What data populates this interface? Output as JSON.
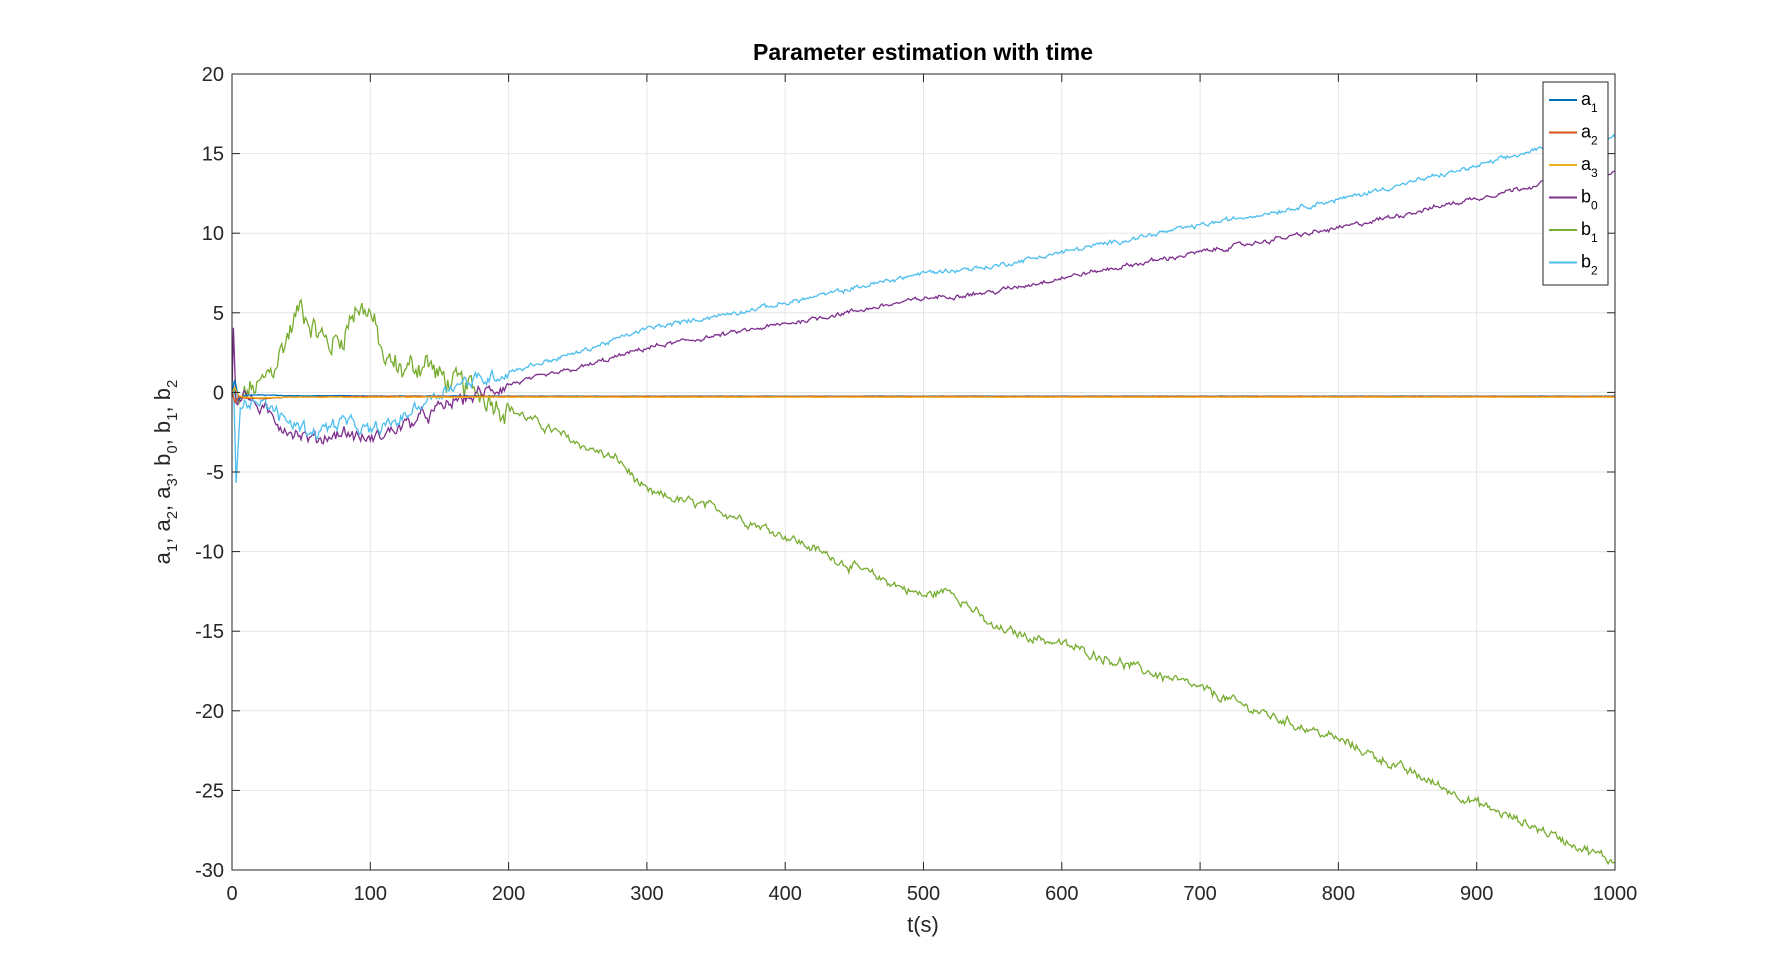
{
  "chart_data": {
    "type": "line",
    "title": "Parameter estimation with time",
    "xlabel": "t(s)",
    "ylabel": {
      "parts": [
        {
          "base": "a",
          "sub": "1"
        },
        {
          "base": "a",
          "sub": "2"
        },
        {
          "base": "a",
          "sub": "3"
        },
        {
          "base": "b",
          "sub": "0"
        },
        {
          "base": "b",
          "sub": "1"
        },
        {
          "base": "b",
          "sub": "2"
        }
      ],
      "separator": ", "
    },
    "xlim": [
      0,
      1000
    ],
    "ylim": [
      -30,
      20
    ],
    "xticks": [
      "0",
      "100",
      "200",
      "300",
      "400",
      "500",
      "600",
      "700",
      "800",
      "900",
      "1000"
    ],
    "yticks": [
      "20",
      "15",
      "10",
      "5",
      "0",
      "-5",
      "-10",
      "-15",
      "-20",
      "-25",
      "-30"
    ],
    "grid": true,
    "legend_location": "top-right",
    "series": [
      {
        "name": "a",
        "sub": "1",
        "color": "#0072BD",
        "x": [
          0,
          2,
          5,
          10,
          20,
          40,
          100,
          200,
          400,
          600,
          800,
          1000
        ],
        "y": [
          0.0,
          0.8,
          -0.4,
          -0.2,
          -0.15,
          -0.2,
          -0.22,
          -0.23,
          -0.23,
          -0.23,
          -0.23,
          -0.23
        ],
        "noise": 0.02
      },
      {
        "name": "a",
        "sub": "2",
        "color": "#D95319",
        "x": [
          0,
          2,
          5,
          10,
          20,
          40,
          100,
          200,
          400,
          600,
          800,
          1000
        ],
        "y": [
          0.0,
          -0.6,
          -0.3,
          -0.35,
          -0.4,
          -0.3,
          -0.25,
          -0.25,
          -0.25,
          -0.25,
          -0.25,
          -0.25
        ],
        "noise": 0.02
      },
      {
        "name": "a",
        "sub": "3",
        "color": "#EDB120",
        "x": [
          0,
          2,
          5,
          10,
          20,
          40,
          100,
          200,
          400,
          600,
          800,
          1000
        ],
        "y": [
          0.0,
          0.3,
          -0.2,
          -0.3,
          -0.35,
          -0.3,
          -0.3,
          -0.3,
          -0.3,
          -0.3,
          -0.3,
          -0.3
        ],
        "noise": 0.02
      },
      {
        "name": "b",
        "sub": "0",
        "color": "#7E2F8E",
        "x": [
          0,
          1,
          3,
          8,
          20,
          40,
          60,
          80,
          100,
          120,
          140,
          160,
          180,
          200,
          250,
          300,
          400,
          500,
          550,
          600,
          700,
          800,
          900,
          950,
          1000
        ],
        "y": [
          0,
          4.0,
          -0.5,
          0.0,
          -1.0,
          -2.3,
          -3.0,
          -2.5,
          -3.0,
          -2.2,
          -1.5,
          -0.6,
          -0.1,
          0.5,
          1.5,
          2.8,
          4.3,
          5.9,
          6.3,
          7.2,
          8.8,
          10.3,
          12.2,
          13.2,
          13.8
        ],
        "noise": 0.45
      },
      {
        "name": "b",
        "sub": "1",
        "color": "#77AC30",
        "x": [
          0,
          5,
          10,
          20,
          30,
          40,
          50,
          60,
          70,
          80,
          90,
          100,
          110,
          120,
          130,
          140,
          150,
          160,
          170,
          180,
          200,
          250,
          280,
          300,
          350,
          400,
          450,
          500,
          520,
          550,
          600,
          650,
          700,
          750,
          800,
          850,
          900,
          950,
          1000
        ],
        "y": [
          0,
          -1.0,
          0.0,
          0.3,
          1.5,
          3.5,
          5.5,
          4.0,
          3.0,
          3.5,
          5.5,
          5.0,
          2.0,
          1.5,
          1.5,
          2.0,
          1.0,
          0.5,
          0.3,
          0.0,
          -1.0,
          -3.2,
          -4.3,
          -6.3,
          -7.3,
          -9.0,
          -11.0,
          -12.8,
          -12.4,
          -14.8,
          -15.8,
          -17.2,
          -18.6,
          -20.3,
          -21.8,
          -23.8,
          -25.8,
          -27.6,
          -29.5
        ],
        "noise": 0.9
      },
      {
        "name": "b",
        "sub": "2",
        "color": "#4DBEEE",
        "x": [
          0,
          1,
          3,
          6,
          20,
          40,
          60,
          80,
          100,
          120,
          140,
          160,
          180,
          200,
          250,
          300,
          400,
          500,
          550,
          600,
          700,
          800,
          900,
          950,
          1000
        ],
        "y": [
          0,
          0.5,
          -5.5,
          -0.5,
          -0.5,
          -1.8,
          -2.5,
          -1.8,
          -2.5,
          -1.8,
          -0.5,
          0.5,
          0.8,
          1.3,
          2.5,
          4.0,
          5.6,
          7.5,
          7.9,
          8.8,
          10.5,
          12.1,
          14.2,
          15.4,
          16.1
        ],
        "noise": 0.45
      }
    ]
  }
}
